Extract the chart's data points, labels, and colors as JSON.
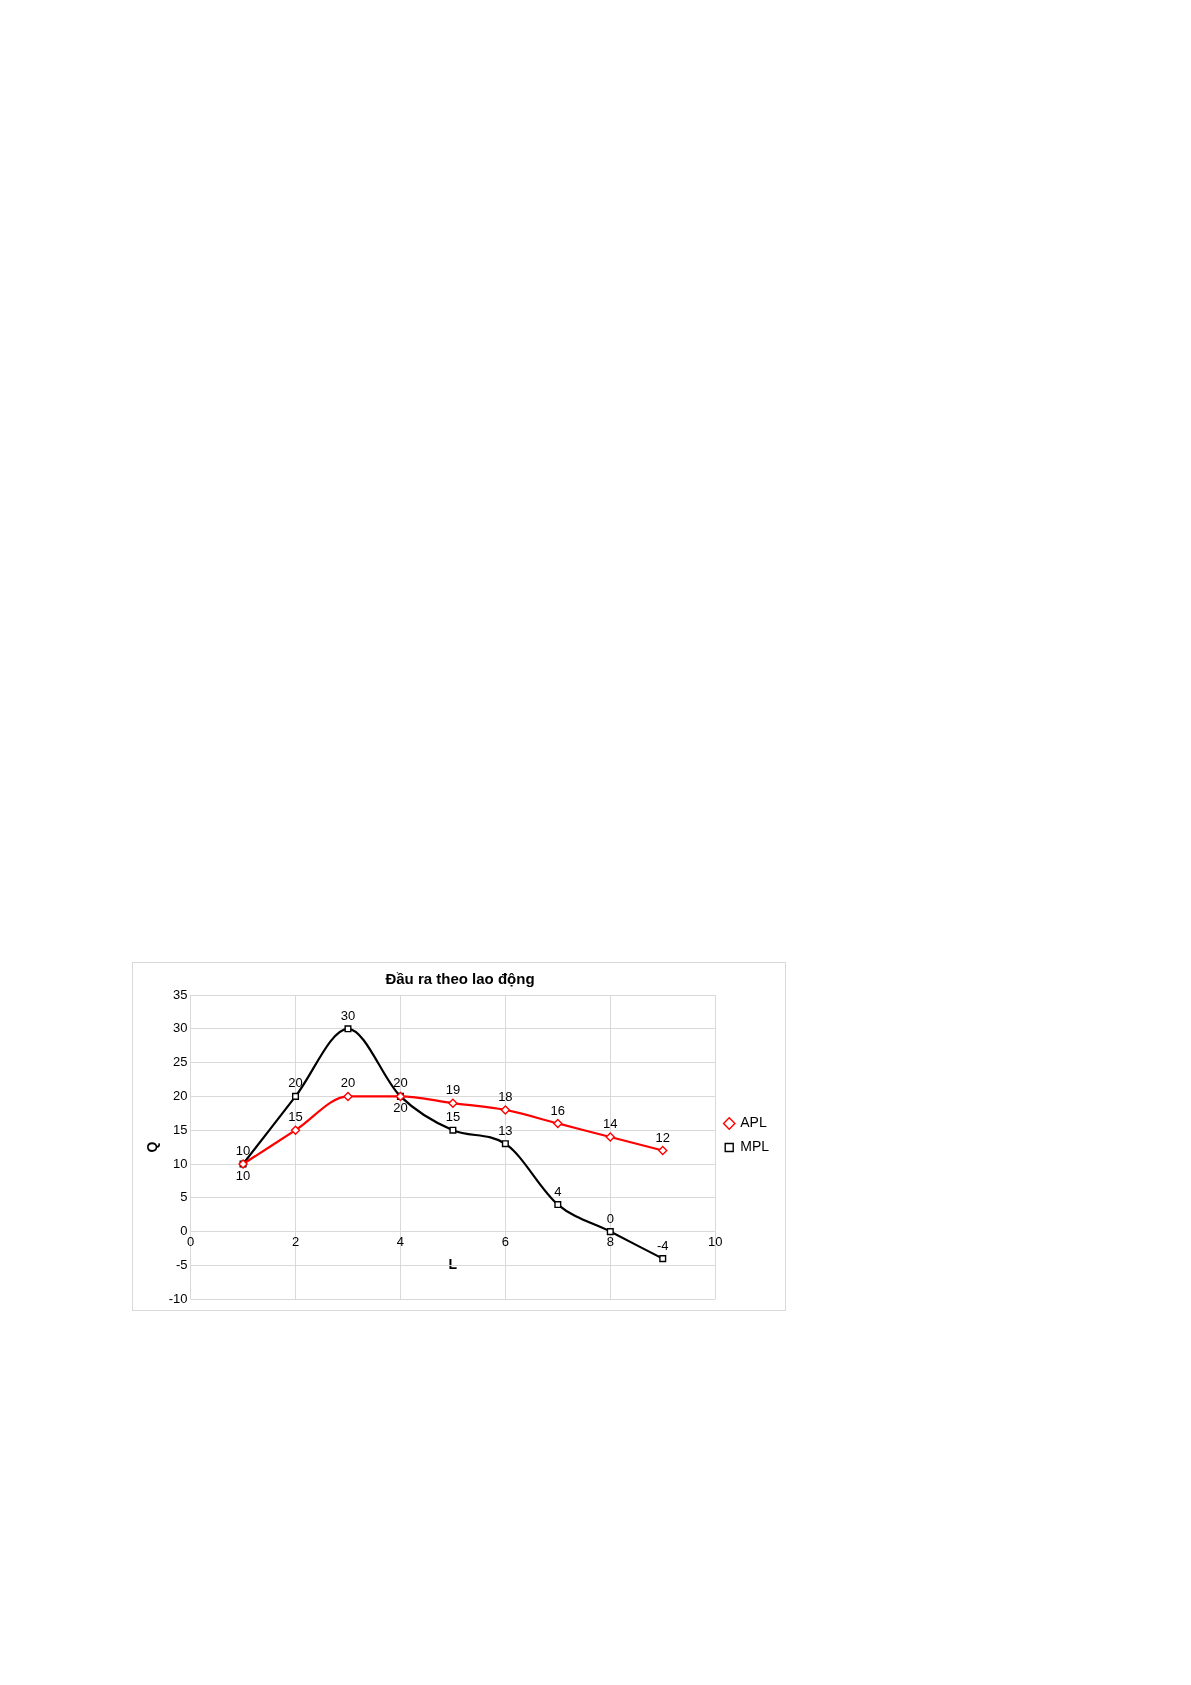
{
  "chart_data": {
    "type": "line",
    "title": "Đầu ra theo lao động",
    "xlabel": "L",
    "ylabel": "Q",
    "x": [
      1,
      2,
      3,
      4,
      5,
      6,
      7,
      8,
      9
    ],
    "series": [
      {
        "name": "APL",
        "color": "#ff0000",
        "marker": "diamond",
        "values": [
          10,
          15,
          20,
          20,
          19,
          18,
          16,
          14,
          12
        ]
      },
      {
        "name": "MPL",
        "color": "#000000",
        "marker": "square",
        "values": [
          10,
          20,
          30,
          20,
          15,
          13,
          4,
          0,
          -4
        ]
      }
    ],
    "xlim": [
      0,
      10
    ],
    "xticks": [
      0,
      2,
      4,
      6,
      8,
      10
    ],
    "ylim": [
      -10,
      35
    ],
    "yticks": [
      -10,
      -5,
      0,
      5,
      10,
      15,
      20,
      25,
      30,
      35
    ],
    "grid": true,
    "legend": "right",
    "data_labels": true
  }
}
